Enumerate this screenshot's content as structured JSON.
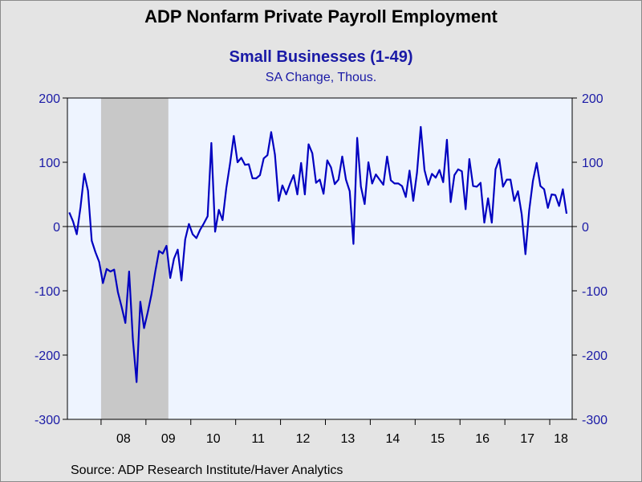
{
  "title": "ADP Nonfarm Private Payroll Employment",
  "subtitle": "Small Businesses (1-49)",
  "units": "SA Change, Thous.",
  "source": "Source:  ADP Research Institute/Haver Analytics",
  "colors": {
    "line": "#0000c0",
    "axis_label": "#1a1aa6",
    "plot_bg": "#eef4ff",
    "recession": "#c8c8c8",
    "page_bg": "#e4e4e4"
  },
  "chart_data": {
    "type": "line",
    "title": "ADP Nonfarm Private Payroll Employment",
    "subtitle": "Small Businesses (1-49)",
    "ylabel": "SA Change, Thous.",
    "ylim": [
      -300,
      200
    ],
    "yticks": [
      200,
      100,
      0,
      -100,
      -200,
      -300
    ],
    "x_start": "2007-04",
    "x_end": "2018-06",
    "xlim": [
      "2007-04",
      "2018-07"
    ],
    "xtick_labels": [
      "08",
      "09",
      "10",
      "11",
      "12",
      "13",
      "14",
      "15",
      "16",
      "17",
      "18"
    ],
    "recession_shading": [
      [
        "2008-01",
        "2009-06"
      ]
    ],
    "zero_line": true,
    "grid": false,
    "series": [
      {
        "values": [
          22,
          8,
          -12,
          30,
          82,
          56,
          -22,
          -40,
          -55,
          -88,
          -66,
          -70,
          -67,
          -102,
          -125,
          -150,
          -70,
          -175,
          -242,
          -117,
          -158,
          -133,
          -105,
          -70,
          -38,
          -42,
          -30,
          -80,
          -50,
          -36,
          -84,
          -20,
          4,
          -12,
          -18,
          -5,
          5,
          16,
          130,
          -8,
          26,
          10,
          60,
          98,
          141,
          100,
          107,
          96,
          97,
          75,
          75,
          80,
          106,
          111,
          147,
          112,
          40,
          64,
          50,
          66,
          80,
          50,
          99,
          50,
          128,
          114,
          68,
          73,
          51,
          103,
          92,
          66,
          73,
          109,
          73,
          55,
          -27,
          138,
          62,
          35,
          100,
          67,
          81,
          73,
          65,
          109,
          72,
          67,
          67,
          63,
          46,
          87,
          40,
          84,
          155,
          88,
          65,
          82,
          76,
          88,
          69,
          135,
          38,
          80,
          89,
          86,
          27,
          105,
          63,
          62,
          68,
          6,
          44,
          6,
          89,
          105,
          62,
          73,
          73,
          40,
          55,
          19,
          -43,
          25,
          71,
          99,
          63,
          58,
          29,
          50,
          49,
          32,
          58,
          20
        ]
      }
    ]
  }
}
